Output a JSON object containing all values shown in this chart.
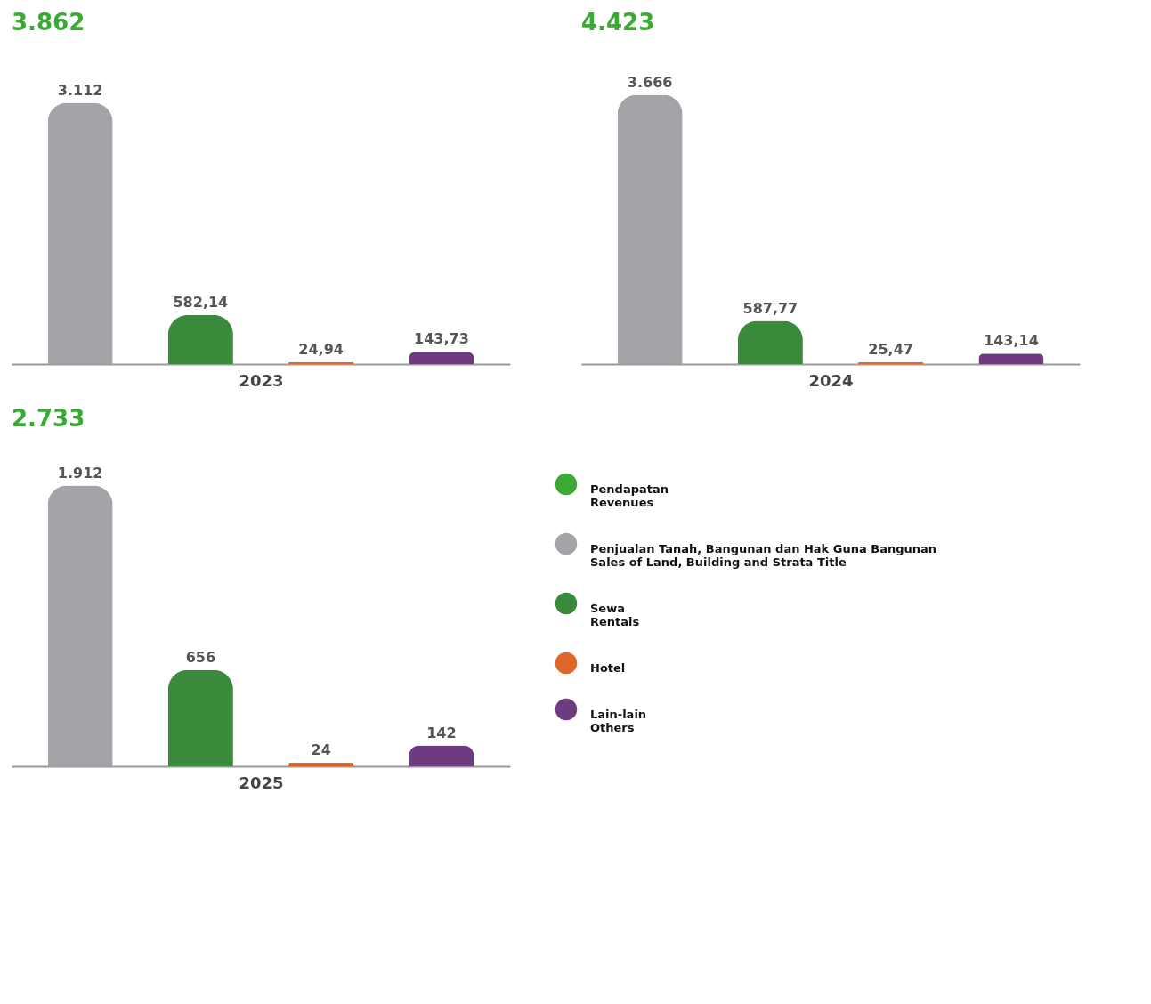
{
  "chart_data": [
    {
      "type": "bar",
      "title": "3.862",
      "xlabel": "2023",
      "categories": [
        null,
        null,
        null,
        null
      ],
      "values": [
        3112,
        582.14,
        24.94,
        143.73
      ],
      "colors": [
        "#a3a4a7",
        "#3a8a3c",
        "#e0672a",
        "#6e3a80"
      ],
      "value_labels": [
        "3.112",
        "582,14",
        "24,94",
        "143,73"
      ]
    },
    {
      "type": "bar",
      "title": "4.423",
      "xlabel": "2024",
      "categories": [
        null,
        null,
        null,
        null
      ],
      "values": [
        3666,
        587.77,
        25.47,
        143.14
      ],
      "colors": [
        "#a3a4a7",
        "#3a8a3c",
        "#e0672a",
        "#6e3a80"
      ],
      "value_labels": [
        "3.666",
        "587,77",
        "25,47",
        "143,14"
      ]
    },
    {
      "type": "bar",
      "title": "2.733",
      "xlabel": "2025",
      "categories": [
        null,
        null,
        null,
        null
      ],
      "legend": "right",
      "series": [
        {
          "name": "Pendapatan\nRevenues",
          "color": "#3aaa35",
          "values": [
            null,
            null,
            null,
            null
          ]
        },
        {
          "name": "Penjualan Tanah, Bangunan dan Hak Guna Bangunan\nSales of Land, Building and Strata Title",
          "color": "#a3a4a7",
          "values": [
            1912,
            null,
            null,
            null
          ],
          "value_labels": [
            "1.912",
            null,
            null,
            null
          ]
        },
        {
          "name": "Sewa\nRentals",
          "color": "#3a8a3c",
          "values": [
            null,
            656,
            null,
            null
          ],
          "value_labels": [
            null,
            "656",
            null,
            null
          ]
        },
        {
          "name": "Hotel",
          "color": "#e0672a",
          "values": [
            null,
            null,
            24,
            null
          ],
          "value_labels": [
            null,
            null,
            "24",
            null
          ]
        },
        {
          "name": "Lain-lain\nOthers",
          "color": "#6e3a80",
          "values": [
            null,
            null,
            null,
            142
          ],
          "value_labels": [
            null,
            null,
            null,
            "142"
          ]
        }
      ]
    }
  ]
}
